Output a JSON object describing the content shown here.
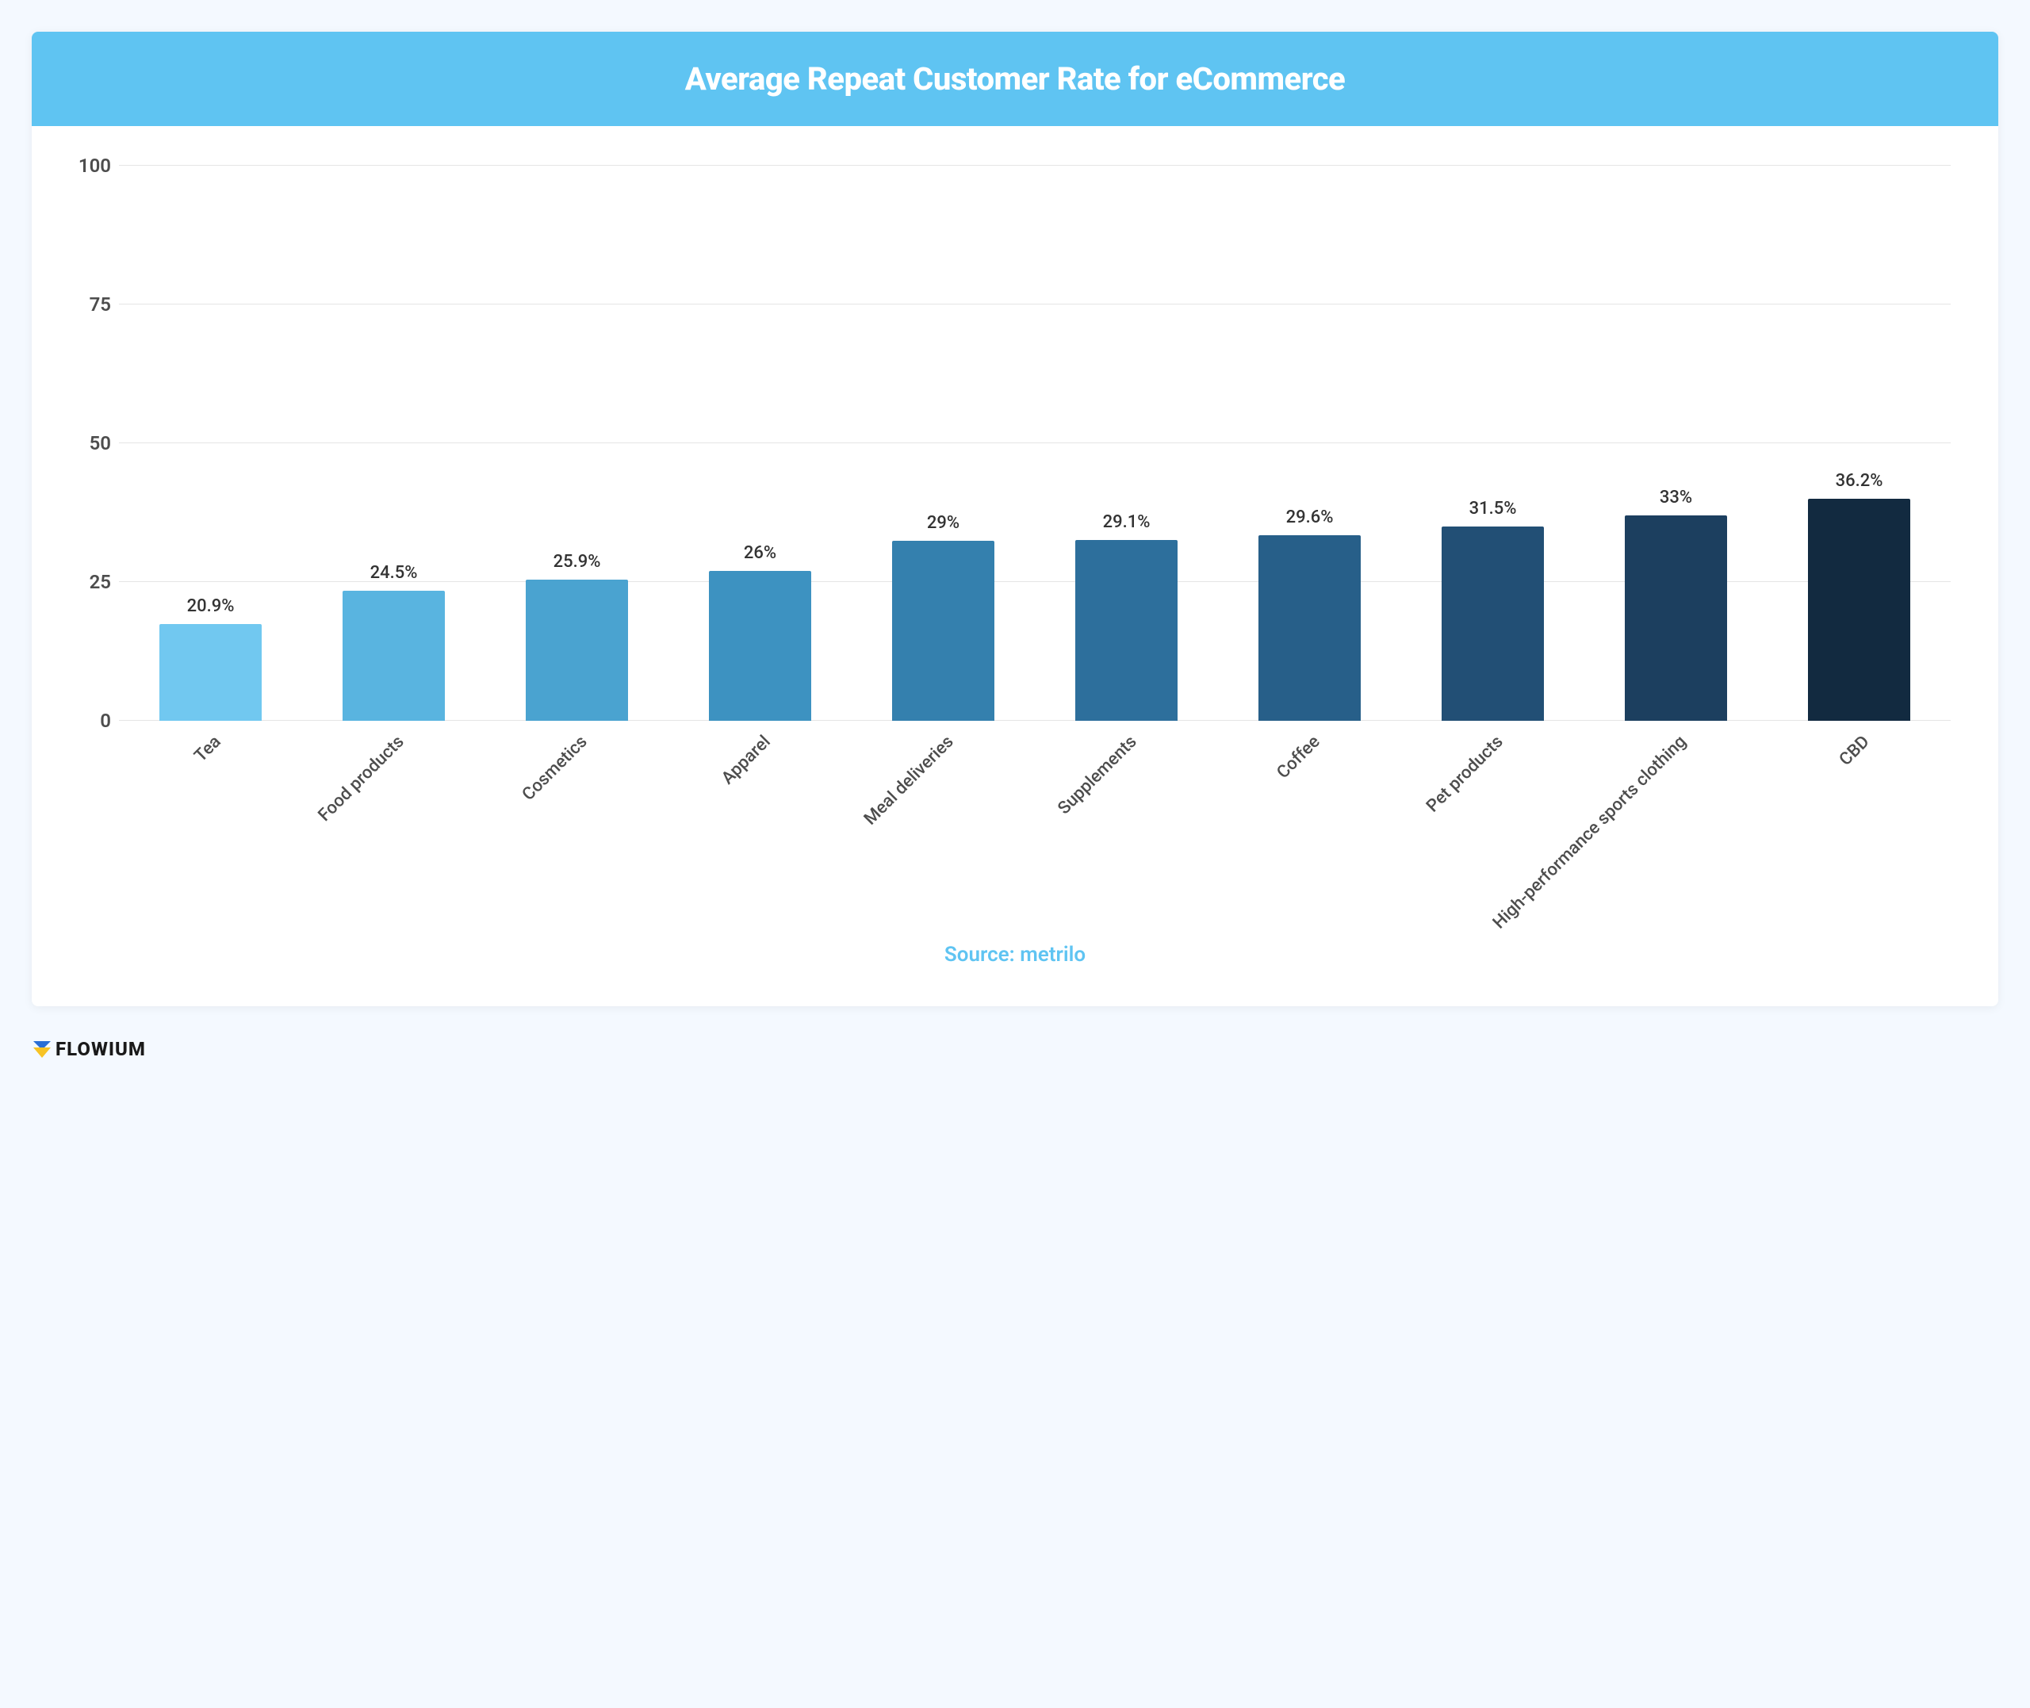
{
  "page": {
    "background_color": "#f4f9ff"
  },
  "chart": {
    "type": "bar",
    "title": "Average Repeat Customer Rate for eCommerce",
    "title_bg_color": "#5fc4f2",
    "title_text_color": "#ffffff",
    "title_fontsize": 40,
    "card_bg_color": "#ffffff",
    "grid_color": "#e5e5e5",
    "tick_text_color": "#4d4d4d",
    "tick_fontsize": 24,
    "value_label_color": "#333333",
    "value_label_fontsize": 22,
    "xlabel_color": "#4d4d4d",
    "xlabel_fontsize": 22,
    "ylim": [
      0,
      100
    ],
    "ytick_step": 25,
    "yticks": [
      0,
      25,
      50,
      75,
      100
    ],
    "bar_width_pct": 56,
    "categories": [
      "Tea",
      "Food products",
      "Cosmetics",
      "Apparel",
      "Meal deliveries",
      "Supplements",
      "Coffee",
      "Pet products",
      "High-performance sports clothing",
      "CBD"
    ],
    "values": [
      20.9,
      24.5,
      25.9,
      26,
      29,
      29.1,
      29.6,
      31.5,
      33,
      36.2
    ],
    "value_labels": [
      "20.9%",
      "24.5%",
      "25.9%",
      "26%",
      "29%",
      "29.1%",
      "29.6%",
      "31.5%",
      "33%",
      "36.2%"
    ],
    "bar_heights_pct": [
      17.5,
      23.5,
      25.5,
      27,
      32.5,
      32.6,
      33.5,
      35,
      37,
      40
    ],
    "bar_colors": [
      "#71c8f0",
      "#59b4e0",
      "#4aa3d0",
      "#3d92c1",
      "#3480ae",
      "#2d6f9c",
      "#275f89",
      "#224f75",
      "#1c3f5f",
      "#122a40"
    ]
  },
  "source": {
    "prefix": "Source: ",
    "name": "metrilo",
    "color": "#5fc4f2",
    "fontsize": 26
  },
  "brand": {
    "name": "FLOWIUM",
    "icon_colors": {
      "top": "#2a6fd6",
      "bottom": "#f7c325"
    }
  }
}
